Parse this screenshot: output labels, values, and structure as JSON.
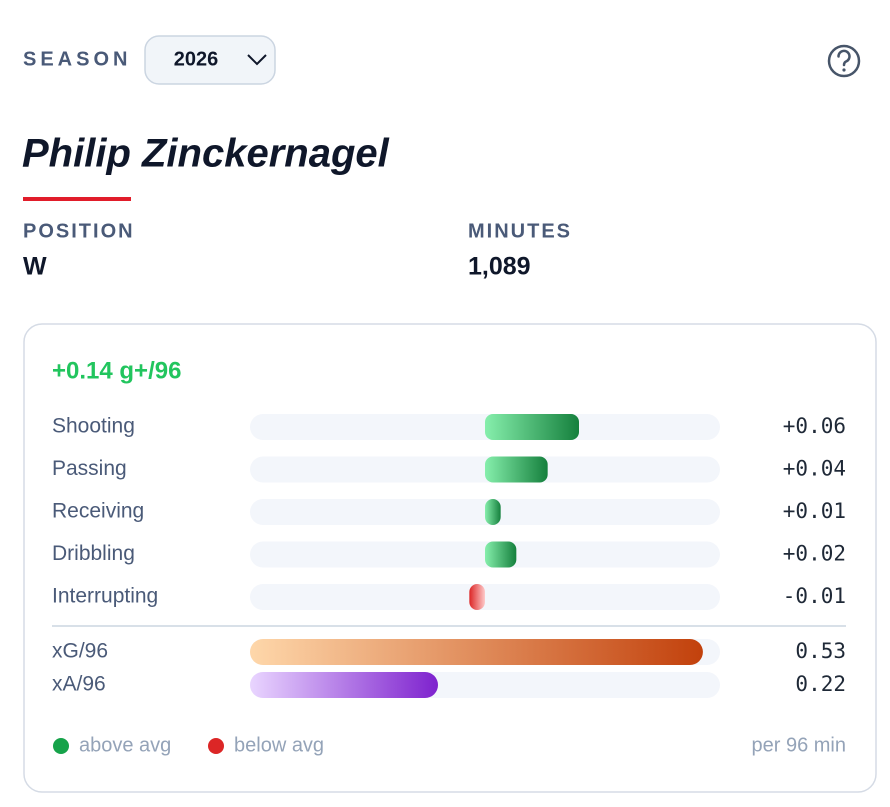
{
  "header": {
    "season_label": "SEASON",
    "season": "2026"
  },
  "player": {
    "name": "Philip Zinckernagel",
    "position_label": "POSITION",
    "position": "W",
    "minutes_label": "MINUTES",
    "minutes": "1,089"
  },
  "card": {
    "total": "+0.14 g+/96",
    "components": {
      "xlim": [
        -0.15,
        0.15
      ],
      "rows": [
        {
          "name": "Shooting",
          "value": 0.06,
          "label": "+0.06"
        },
        {
          "name": "Passing",
          "value": 0.04,
          "label": "+0.04"
        },
        {
          "name": "Receiving",
          "value": 0.01,
          "label": "+0.01"
        },
        {
          "name": "Dribbling",
          "value": 0.02,
          "label": "+0.02"
        },
        {
          "name": "Interrupting",
          "value": -0.01,
          "label": "-0.01"
        }
      ]
    },
    "output": {
      "xlim": [
        0,
        0.55
      ],
      "rows": [
        {
          "name": "xG/96",
          "value": 0.53
        },
        {
          "name": "xA/96",
          "value": 0.22
        }
      ]
    },
    "legend": {
      "above": "above avg",
      "below": "below avg",
      "unit": "per 96 min"
    }
  }
}
